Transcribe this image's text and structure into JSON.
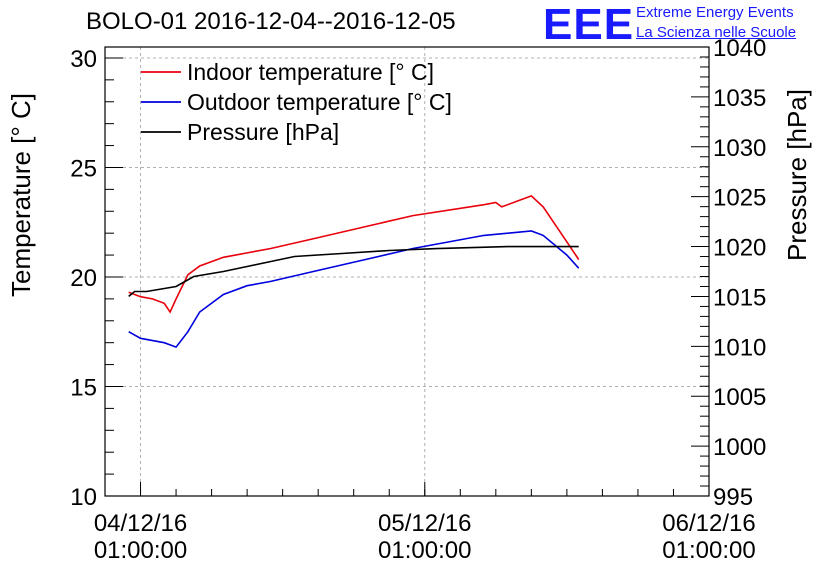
{
  "chart_data": {
    "type": "line",
    "title": "BOLO-01 2016-12-04--2016-12-05",
    "ylabel": "Temperature [° C]",
    "y2label": "Pressure [hPa]",
    "xlim": [
      "2016-12-03 22:00:00",
      "2016-12-06 01:00:00"
    ],
    "ylim": [
      10,
      30.5
    ],
    "y2lim": [
      995,
      1040
    ],
    "grid": true,
    "legend_position": "top-left",
    "x_ticks": [
      {
        "x": "2016-12-04 01:00:00",
        "date": "04/12/16",
        "time": "01:00:00"
      },
      {
        "x": "2016-12-05 01:00:00",
        "date": "05/12/16",
        "time": "01:00:00"
      },
      {
        "x": "2016-12-06 01:00:00",
        "date": "06/12/16",
        "time": "01:00:00"
      }
    ],
    "y_ticks": [
      "10",
      "15",
      "20",
      "25",
      "30"
    ],
    "y2_ticks": [
      "995",
      "1000",
      "1005",
      "1010",
      "1015",
      "1020",
      "1025",
      "1030",
      "1035",
      "1040"
    ],
    "series": [
      {
        "name": "Indoor temperature [° C]",
        "color": "#e8000b",
        "axis": "left",
        "points": [
          [
            "2016-12-04 00:00",
            19.3
          ],
          [
            "2016-12-04 01:00",
            19.1
          ],
          [
            "2016-12-04 02:00",
            19.0
          ],
          [
            "2016-12-04 03:00",
            18.8
          ],
          [
            "2016-12-04 03:30",
            18.4
          ],
          [
            "2016-12-04 04:00",
            19.0
          ],
          [
            "2016-12-04 05:00",
            20.1
          ],
          [
            "2016-12-04 06:00",
            20.5
          ],
          [
            "2016-12-04 08:00",
            20.9
          ],
          [
            "2016-12-04 10:00",
            21.1
          ],
          [
            "2016-12-04 12:00",
            21.3
          ],
          [
            "2016-12-04 16:00",
            21.8
          ],
          [
            "2016-12-04 20:00",
            22.3
          ],
          [
            "2016-12-05 00:00",
            22.8
          ],
          [
            "2016-12-05 06:00",
            23.3
          ],
          [
            "2016-12-05 07:00",
            23.4
          ],
          [
            "2016-12-05 07:30",
            23.2
          ],
          [
            "2016-12-05 09:00",
            23.5
          ],
          [
            "2016-12-05 10:00",
            23.7
          ],
          [
            "2016-12-05 11:00",
            23.2
          ],
          [
            "2016-12-05 13:00",
            21.6
          ],
          [
            "2016-12-05 14:00",
            20.8
          ]
        ]
      },
      {
        "name": "Outdoor temperature [° C]",
        "color": "#0000dd",
        "axis": "left",
        "points": [
          [
            "2016-12-04 00:00",
            17.5
          ],
          [
            "2016-12-04 01:00",
            17.2
          ],
          [
            "2016-12-04 03:00",
            17.0
          ],
          [
            "2016-12-04 04:00",
            16.8
          ],
          [
            "2016-12-04 05:00",
            17.5
          ],
          [
            "2016-12-04 06:00",
            18.4
          ],
          [
            "2016-12-04 08:00",
            19.2
          ],
          [
            "2016-12-04 10:00",
            19.6
          ],
          [
            "2016-12-04 12:00",
            19.8
          ],
          [
            "2016-12-04 16:00",
            20.3
          ],
          [
            "2016-12-04 20:00",
            20.8
          ],
          [
            "2016-12-05 00:00",
            21.3
          ],
          [
            "2016-12-05 06:00",
            21.9
          ],
          [
            "2016-12-05 08:00",
            22.0
          ],
          [
            "2016-12-05 10:00",
            22.1
          ],
          [
            "2016-12-05 11:00",
            21.9
          ],
          [
            "2016-12-05 13:00",
            21.0
          ],
          [
            "2016-12-05 14:00",
            20.4
          ]
        ]
      },
      {
        "name": "Pressure [hPa]",
        "color": "#000000",
        "axis": "right",
        "points": [
          [
            "2016-12-04 00:00",
            1015.0
          ],
          [
            "2016-12-04 00:30",
            1015.5
          ],
          [
            "2016-12-04 01:30",
            1015.5
          ],
          [
            "2016-12-04 04:00",
            1016.0
          ],
          [
            "2016-12-04 05:30",
            1017.0
          ],
          [
            "2016-12-04 08:00",
            1017.5
          ],
          [
            "2016-12-04 10:00",
            1018.0
          ],
          [
            "2016-12-04 12:00",
            1018.5
          ],
          [
            "2016-12-04 14:00",
            1019.0
          ],
          [
            "2016-12-04 18:00",
            1019.3
          ],
          [
            "2016-12-04 22:00",
            1019.6
          ],
          [
            "2016-12-05 02:00",
            1019.8
          ],
          [
            "2016-12-05 08:00",
            1020.0
          ],
          [
            "2016-12-05 14:00",
            1020.0
          ]
        ]
      }
    ]
  },
  "logo": {
    "text": "EEE",
    "line1": "Extreme Energy Events",
    "line2": "La Scienza nelle Scuole"
  }
}
